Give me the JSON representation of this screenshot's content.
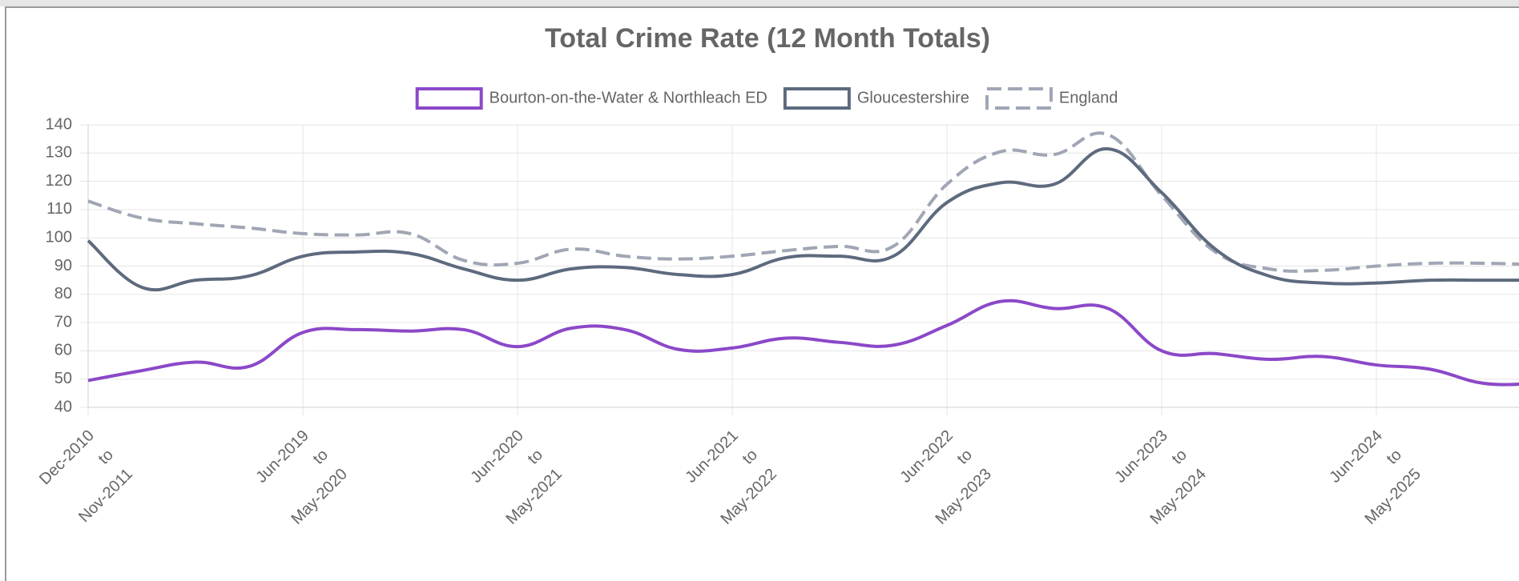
{
  "chart_data": {
    "type": "line",
    "title": "Total Crime Rate (12 Month Totals)",
    "categories": [
      [
        "Dec-2010",
        "to",
        "Nov-2011"
      ],
      null,
      null,
      null,
      [
        "Jun-2019",
        "to",
        "May-2020"
      ],
      null,
      null,
      null,
      [
        "Jun-2020",
        "to",
        "May-2021"
      ],
      null,
      null,
      null,
      [
        "Jun-2021",
        "to",
        "May-2022"
      ],
      null,
      null,
      null,
      [
        "Jun-2022",
        "to",
        "May-2023"
      ],
      null,
      null,
      null,
      [
        "Jun-2023",
        "to",
        "May-2024"
      ],
      null,
      null,
      null,
      [
        "Jun-2024",
        "to",
        "May-2025"
      ],
      null,
      null,
      null
    ],
    "series": [
      {
        "name": "Bourton-on-the-Water & Northleach ED",
        "color": "#8b48c8",
        "dashed": false,
        "values": [
          49.5,
          53,
          56,
          54.5,
          66.5,
          67.5,
          67,
          67.5,
          61.5,
          68,
          67.5,
          60.5,
          61,
          64.5,
          63,
          62,
          69,
          77.5,
          75,
          75,
          60,
          59,
          57,
          58,
          55,
          53.5,
          48.5,
          48.5
        ]
      },
      {
        "name": "Gloucestershire",
        "color": "#5d6a7e",
        "dashed": false,
        "values": [
          99,
          82.5,
          85,
          86.5,
          93.5,
          95,
          94.5,
          89,
          85,
          89,
          89.5,
          87,
          87,
          93,
          93.5,
          93.5,
          112.5,
          119.5,
          119,
          131.5,
          116,
          96,
          86.5,
          84,
          84,
          85,
          85,
          85
        ]
      },
      {
        "name": "England",
        "color": "#a0a6b4",
        "dashed": true,
        "values": [
          113,
          107,
          105,
          103.5,
          101.5,
          101,
          101.5,
          92,
          91,
          96,
          93.5,
          92.5,
          93.5,
          95.5,
          97,
          97,
          119,
          130.5,
          129.5,
          136.5,
          115,
          95,
          89,
          88.5,
          90,
          91,
          91,
          90.5
        ]
      }
    ],
    "ylim": [
      40,
      140
    ],
    "yticks": [
      40,
      50,
      60,
      70,
      80,
      90,
      100,
      110,
      120,
      130,
      140
    ],
    "grid": true
  }
}
